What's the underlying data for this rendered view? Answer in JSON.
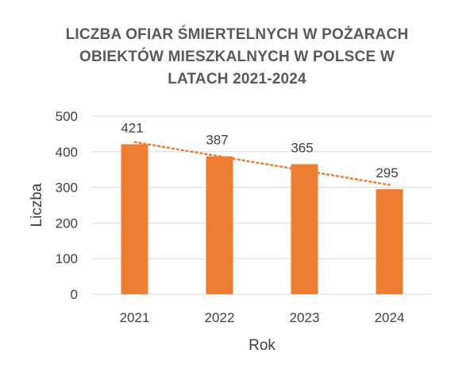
{
  "chart_data": {
    "type": "bar",
    "title_lines": [
      "LICZBA OFIAR ŚMIERTELNYCH W POŻARACH",
      "OBIEKTÓW MIESZKALNYCH W POLSCE W",
      "LATACH 2021-2024"
    ],
    "categories": [
      "2021",
      "2022",
      "2023",
      "2024"
    ],
    "values": [
      421,
      387,
      365,
      295
    ],
    "data_labels": [
      "421",
      "387",
      "365",
      "295"
    ],
    "xlabel": "Rok",
    "ylabel": "Liczba",
    "ylim": [
      0,
      500
    ],
    "yticks": [
      0,
      100,
      200,
      300,
      400,
      500
    ],
    "ytick_labels": [
      "0",
      "100",
      "200",
      "300",
      "400",
      "500"
    ],
    "grid": true,
    "trendline": "linear",
    "colors": {
      "bar": "#ED7D31",
      "trendline": "#ED7D31",
      "grid": "#D9D9D9",
      "text": "#595959"
    }
  }
}
